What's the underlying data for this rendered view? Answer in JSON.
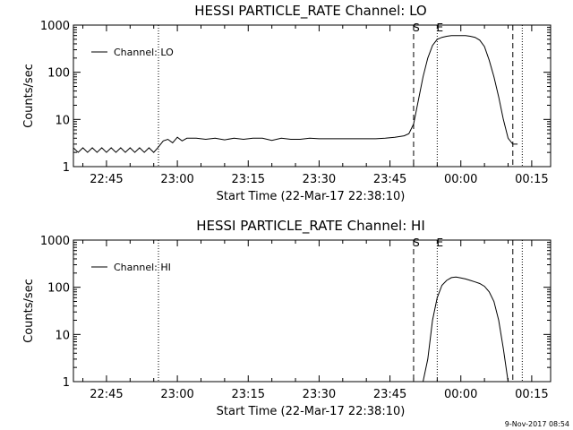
{
  "timestamp": "9-Nov-2017 08:54",
  "chart_data": [
    {
      "type": "line",
      "title": "HESSI PARTICLE_RATE Channel: LO",
      "xlabel": "Start Time (22-Mar-17 22:38:10)",
      "ylabel": "Counts/sec",
      "yscale": "log",
      "ylim": [
        1,
        1000
      ],
      "xlim": [
        "22:38",
        "00:19"
      ],
      "x_ticks": [
        "22:45",
        "23:00",
        "23:15",
        "23:30",
        "23:45",
        "00:00",
        "00:15"
      ],
      "y_ticks": [
        "1",
        "10",
        "100",
        "1000"
      ],
      "grid": false,
      "legend": {
        "position": "top-left",
        "label": "Channel: LO"
      },
      "markers": [
        {
          "time": "22:56",
          "style": "dotted",
          "label": ""
        },
        {
          "time": "23:50",
          "style": "dashed",
          "label": "S"
        },
        {
          "time": "23:55",
          "style": "dotted",
          "label": "E"
        },
        {
          "time": "00:11",
          "style": "dashed",
          "label": ""
        },
        {
          "time": "00:13",
          "style": "dotted",
          "label": ""
        }
      ],
      "series": [
        {
          "x": [
            "22:38",
            "22:39",
            "22:40",
            "22:41",
            "22:42",
            "22:43",
            "22:44",
            "22:45",
            "22:46",
            "22:47",
            "22:48",
            "22:49",
            "22:50",
            "22:51",
            "22:52",
            "22:53",
            "22:54",
            "22:55",
            "22:56",
            "22:57",
            "22:58",
            "22:59",
            "23:00",
            "23:01",
            "23:02",
            "23:04",
            "23:06",
            "23:08",
            "23:10",
            "23:12",
            "23:14",
            "23:16",
            "23:18",
            "23:20",
            "23:22",
            "23:24",
            "23:26",
            "23:28",
            "23:30",
            "23:32",
            "23:34",
            "23:36",
            "23:38",
            "23:40",
            "23:42",
            "23:44",
            "23:46",
            "23:48",
            "23:49",
            "23:50",
            "23:51",
            "23:52",
            "23:53",
            "23:54",
            "23:55",
            "23:56",
            "23:57",
            "23:58",
            "23:59",
            "00:00",
            "00:01",
            "00:02",
            "00:03",
            "00:04",
            "00:05",
            "00:06",
            "00:07",
            "00:08",
            "00:09",
            "00:10",
            "00:11",
            "00:12"
          ],
          "values": [
            2.5,
            2,
            2.5,
            2,
            2.5,
            2,
            2.5,
            2,
            2.5,
            2,
            2.5,
            2,
            2.5,
            2,
            2.5,
            2,
            2.5,
            2,
            2.6,
            3.5,
            3.8,
            3.2,
            4.2,
            3.5,
            4,
            4,
            3.8,
            4,
            3.7,
            4,
            3.8,
            4,
            4,
            3.6,
            4,
            3.8,
            3.8,
            4,
            3.9,
            3.9,
            3.9,
            3.9,
            3.9,
            3.9,
            3.9,
            4,
            4.2,
            4.5,
            5,
            8,
            25,
            80,
            200,
            370,
            500,
            550,
            580,
            600,
            600,
            600,
            600,
            580,
            550,
            480,
            350,
            180,
            80,
            30,
            10,
            4,
            3,
            3
          ]
        }
      ]
    },
    {
      "type": "line",
      "title": "HESSI PARTICLE_RATE Channel: HI",
      "xlabel": "Start Time (22-Mar-17 22:38:10)",
      "ylabel": "Counts/sec",
      "yscale": "log",
      "ylim": [
        1,
        1000
      ],
      "xlim": [
        "22:38",
        "00:19"
      ],
      "x_ticks": [
        "22:45",
        "23:00",
        "23:15",
        "23:30",
        "23:45",
        "00:00",
        "00:15"
      ],
      "y_ticks": [
        "1",
        "10",
        "100",
        "1000"
      ],
      "grid": false,
      "legend": {
        "position": "top-left",
        "label": "Channel: HI"
      },
      "markers": [
        {
          "time": "22:56",
          "style": "dotted",
          "label": ""
        },
        {
          "time": "23:50",
          "style": "dashed",
          "label": "S"
        },
        {
          "time": "23:55",
          "style": "dotted",
          "label": "E"
        },
        {
          "time": "00:11",
          "style": "dashed",
          "label": ""
        },
        {
          "time": "00:13",
          "style": "dotted",
          "label": ""
        }
      ],
      "series": [
        {
          "x": [
            "23:52",
            "23:53",
            "23:54",
            "23:55",
            "23:56",
            "23:57",
            "23:58",
            "23:59",
            "00:00",
            "00:01",
            "00:02",
            "00:03",
            "00:04",
            "00:05",
            "00:06",
            "00:07",
            "00:08",
            "00:09",
            "00:10"
          ],
          "values": [
            1,
            3,
            20,
            60,
            110,
            140,
            160,
            165,
            158,
            150,
            140,
            130,
            120,
            105,
            80,
            50,
            20,
            5,
            1
          ]
        }
      ]
    }
  ]
}
